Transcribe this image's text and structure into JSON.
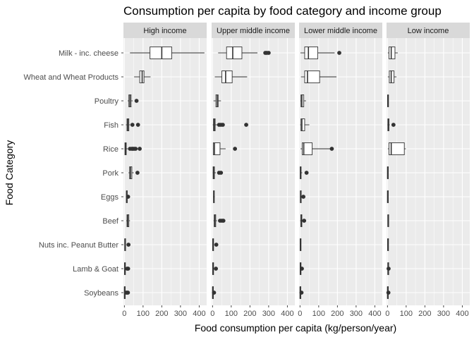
{
  "chart_data": {
    "type": "boxplot",
    "title": "Consumption per capita by food category and income group",
    "xlabel": "Food consumption per capita (kg/person/year)",
    "ylabel": "Food Category",
    "xlim": [
      -5,
      440
    ],
    "x_ticks": [
      0,
      100,
      200,
      300,
      400
    ],
    "x_tick_labels": [
      "0",
      "100",
      "200",
      "300",
      "400"
    ],
    "grid": true,
    "categories": [
      "Milk - inc. cheese",
      "Wheat and Wheat Products",
      "Poultry",
      "Fish",
      "Rice",
      "Pork",
      "Eggs",
      "Beef",
      "Nuts inc. Peanut Butter",
      "Lamb & Goat",
      "Soybeans"
    ],
    "facets": [
      {
        "name": "High income",
        "boxes": [
          {
            "category": "Milk - inc. cheese",
            "min": 30,
            "q1": 137,
            "median": 200,
            "q3": 253,
            "max": 428,
            "outliers": []
          },
          {
            "category": "Wheat and Wheat Products",
            "min": 52,
            "q1": 82,
            "median": 95,
            "q3": 105,
            "max": 140,
            "outliers": []
          },
          {
            "category": "Poultry",
            "min": 18,
            "q1": 24,
            "median": 30,
            "q3": 36,
            "max": 45,
            "outliers": [
              65
            ]
          },
          {
            "category": "Fish",
            "min": 8,
            "q1": 14,
            "median": 19,
            "q3": 24,
            "max": 30,
            "outliers": [
              43,
              73
            ]
          },
          {
            "category": "Rice",
            "min": 1,
            "q1": 3,
            "median": 6,
            "q3": 10,
            "max": 18,
            "outliers": [
              30,
              40,
              45,
              52,
              60,
              82
            ]
          },
          {
            "category": "Pork",
            "min": 22,
            "q1": 28,
            "median": 33,
            "q3": 40,
            "max": 50,
            "outliers": [
              70
            ]
          },
          {
            "category": "Eggs",
            "min": 8,
            "q1": 11,
            "median": 12,
            "q3": 14,
            "max": 18,
            "outliers": [
              20
            ]
          },
          {
            "category": "Beef",
            "min": 10,
            "q1": 14,
            "median": 18,
            "q3": 24,
            "max": 30,
            "outliers": []
          },
          {
            "category": "Nuts inc. Peanut Butter",
            "min": 1,
            "q1": 2,
            "median": 3,
            "q3": 5,
            "max": 8,
            "outliers": [
              22
            ]
          },
          {
            "category": "Lamb & Goat",
            "min": 0,
            "q1": 1,
            "median": 2,
            "q3": 4,
            "max": 8,
            "outliers": [
              15,
              20
            ]
          },
          {
            "category": "Soybeans",
            "min": 0,
            "q1": 0,
            "median": 1,
            "q3": 2,
            "max": 4,
            "outliers": [
              10,
              15,
              19
            ]
          }
        ]
      },
      {
        "name": "Upper middle income",
        "boxes": [
          {
            "category": "Milk - inc. cheese",
            "min": 30,
            "q1": 75,
            "median": 108,
            "q3": 157,
            "max": 240,
            "outliers": [
              282,
              290,
              300
            ]
          },
          {
            "category": "Wheat and Wheat Products",
            "min": 12,
            "q1": 50,
            "median": 70,
            "q3": 105,
            "max": 185,
            "outliers": []
          },
          {
            "category": "Poultry",
            "min": 5,
            "q1": 18,
            "median": 25,
            "q3": 30,
            "max": 45,
            "outliers": []
          },
          {
            "category": "Fish",
            "min": 1,
            "q1": 5,
            "median": 9,
            "q3": 14,
            "max": 25,
            "outliers": [
              35,
              45,
              55,
              180
            ]
          },
          {
            "category": "Rice",
            "min": 2,
            "q1": 4,
            "median": 10,
            "q3": 40,
            "max": 70,
            "outliers": [
              120
            ]
          },
          {
            "category": "Pork",
            "min": 1,
            "q1": 3,
            "median": 6,
            "q3": 10,
            "max": 18,
            "outliers": [
              35,
              45
            ]
          },
          {
            "category": "Eggs",
            "min": 3,
            "q1": 5,
            "median": 7,
            "q3": 9,
            "max": 12,
            "outliers": []
          },
          {
            "category": "Beef",
            "min": 5,
            "q1": 9,
            "median": 12,
            "q3": 17,
            "max": 24,
            "outliers": [
              40,
              50,
              58
            ]
          },
          {
            "category": "Nuts inc. Peanut Butter",
            "min": 0,
            "q1": 1,
            "median": 2,
            "q3": 3,
            "max": 5,
            "outliers": [
              20
            ]
          },
          {
            "category": "Lamb & Goat",
            "min": 0,
            "q1": 1,
            "median": 2,
            "q3": 3,
            "max": 5,
            "outliers": [
              18
            ]
          },
          {
            "category": "Soybeans",
            "min": 0,
            "q1": 0,
            "median": 1,
            "q3": 2,
            "max": 3,
            "outliers": [
              8
            ]
          }
        ]
      },
      {
        "name": "Lower middle income",
        "boxes": [
          {
            "category": "Milk - inc. cheese",
            "min": 2,
            "q1": 25,
            "median": 45,
            "q3": 95,
            "max": 185,
            "outliers": [
              210
            ]
          },
          {
            "category": "Wheat and Wheat Products",
            "min": 5,
            "q1": 25,
            "median": 40,
            "q3": 105,
            "max": 195,
            "outliers": []
          },
          {
            "category": "Poultry",
            "min": 2,
            "q1": 5,
            "median": 10,
            "q3": 20,
            "max": 32,
            "outliers": []
          },
          {
            "category": "Fish",
            "min": 1,
            "q1": 5,
            "median": 10,
            "q3": 25,
            "max": 50,
            "outliers": []
          },
          {
            "category": "Rice",
            "min": 3,
            "q1": 12,
            "median": 20,
            "q3": 65,
            "max": 165,
            "outliers": [
              170
            ]
          },
          {
            "category": "Pork",
            "min": 0,
            "q1": 1,
            "median": 3,
            "q3": 6,
            "max": 12,
            "outliers": [
              35
            ]
          },
          {
            "category": "Eggs",
            "min": 0,
            "q1": 2,
            "median": 3,
            "q3": 5,
            "max": 10,
            "outliers": [
              18
            ]
          },
          {
            "category": "Beef",
            "min": 1,
            "q1": 4,
            "median": 6,
            "q3": 10,
            "max": 15,
            "outliers": [
              22
            ]
          },
          {
            "category": "Nuts inc. Peanut Butter",
            "min": 0,
            "q1": 1,
            "median": 2,
            "q3": 3,
            "max": 5,
            "outliers": []
          },
          {
            "category": "Lamb & Goat",
            "min": 0,
            "q1": 1,
            "median": 2,
            "q3": 3,
            "max": 5,
            "outliers": [
              10
            ]
          },
          {
            "category": "Soybeans",
            "min": 0,
            "q1": 0,
            "median": 1,
            "q3": 2,
            "max": 4,
            "outliers": [
              8
            ]
          }
        ]
      },
      {
        "name": "Low income",
        "boxes": [
          {
            "category": "Milk - inc. cheese",
            "min": 2,
            "q1": 8,
            "median": 20,
            "q3": 40,
            "max": 55,
            "outliers": []
          },
          {
            "category": "Wheat and Wheat Products",
            "min": 2,
            "q1": 10,
            "median": 20,
            "q3": 35,
            "max": 48,
            "outliers": []
          },
          {
            "category": "Poultry",
            "min": 0,
            "q1": 1,
            "median": 2,
            "q3": 3,
            "max": 5,
            "outliers": []
          },
          {
            "category": "Fish",
            "min": 0,
            "q1": 2,
            "median": 4,
            "q3": 8,
            "max": 12,
            "outliers": [
              32
            ]
          },
          {
            "category": "Rice",
            "min": 2,
            "q1": 8,
            "median": 20,
            "q3": 90,
            "max": 98,
            "outliers": []
          },
          {
            "category": "Pork",
            "min": 0,
            "q1": 0,
            "median": 1,
            "q3": 2,
            "max": 4,
            "outliers": []
          },
          {
            "category": "Eggs",
            "min": 0,
            "q1": 0,
            "median": 1,
            "q3": 2,
            "max": 3,
            "outliers": []
          },
          {
            "category": "Beef",
            "min": 1,
            "q1": 2,
            "median": 3,
            "q3": 5,
            "max": 7,
            "outliers": []
          },
          {
            "category": "Nuts inc. Peanut Butter",
            "min": 0,
            "q1": 1,
            "median": 2,
            "q3": 3,
            "max": 4,
            "outliers": []
          },
          {
            "category": "Lamb & Goat",
            "min": 1,
            "q1": 2,
            "median": 3,
            "q3": 5,
            "max": 8,
            "outliers": [
              6
            ]
          },
          {
            "category": "Soybeans",
            "min": 0,
            "q1": 0,
            "median": 1,
            "q3": 2,
            "max": 3,
            "outliers": [
              5
            ]
          }
        ]
      }
    ]
  },
  "colors": {
    "panel_background": "#ebebeb",
    "strip_background": "#d9d9d9",
    "gridline": "#ffffff",
    "box_fill": "#ffffff",
    "box_stroke": "#333333",
    "outlier": "#333333",
    "tick_mark": "#333333"
  }
}
